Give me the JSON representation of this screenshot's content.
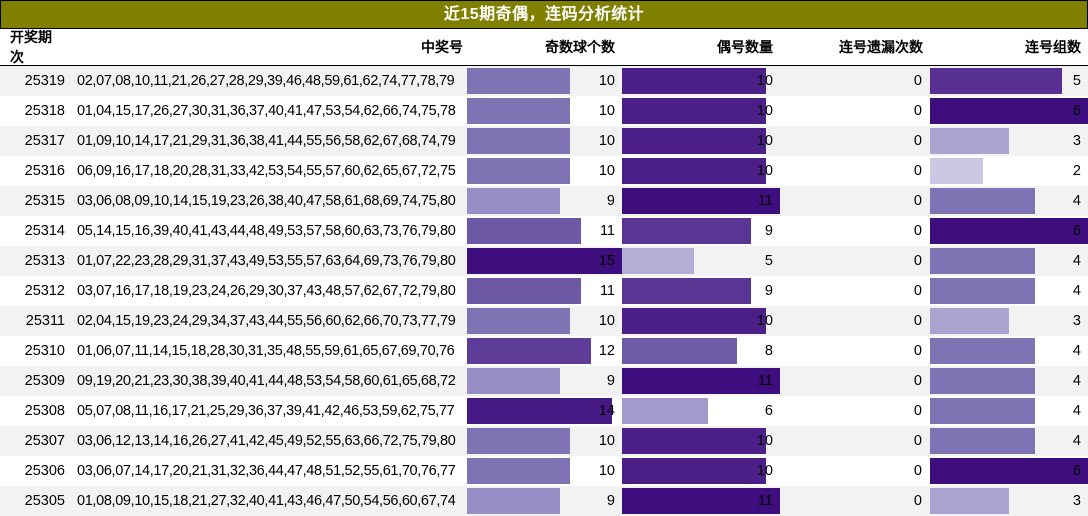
{
  "title": "近15期奇偶，连码分析统计",
  "colors": {
    "title_bg": "#7F7F00",
    "title_text": "#FFFFFF",
    "row_stripe_bg": "#F2F2F2",
    "row_bg": "#FFFFFF",
    "border": "#000000",
    "bar_ramp": [
      {
        "t": 0.3,
        "color": "#D2CFE8"
      },
      {
        "t": 0.6,
        "color": "#988DC4"
      },
      {
        "t": 0.7,
        "color": "#7466AB"
      },
      {
        "t": 0.85,
        "color": "#53298E"
      },
      {
        "t": 1.0,
        "color": "#3E0D7E"
      }
    ]
  },
  "chart_data": {
    "type": "table",
    "title": "近15期奇偶，连码分析统计",
    "columns": [
      "开奖期次",
      "中奖号",
      "奇数球个数",
      "偶号数量",
      "连号遗漏次数",
      "连号组数"
    ],
    "bar_scales": {
      "odd_max": 15,
      "even_max": 11,
      "groups_max": 6
    },
    "rows": [
      [
        "25319",
        "02,07,08,10,11,21,26,27,28,29,39,46,48,59,61,62,74,77,78,79",
        10,
        10,
        0,
        5
      ],
      [
        "25318",
        "01,04,15,17,26,27,30,31,36,37,40,41,47,53,54,62,66,74,75,78",
        10,
        10,
        0,
        6
      ],
      [
        "25317",
        "01,09,10,14,17,21,29,31,36,38,41,44,55,56,58,62,67,68,74,79",
        10,
        10,
        0,
        3
      ],
      [
        "25316",
        "06,09,16,17,18,20,28,31,33,42,53,54,55,57,60,62,65,67,72,75",
        10,
        10,
        0,
        2
      ],
      [
        "25315",
        "03,06,08,09,10,14,15,19,23,26,38,40,47,58,61,68,69,74,75,80",
        9,
        11,
        0,
        4
      ],
      [
        "25314",
        "05,14,15,16,39,40,41,43,44,48,49,53,57,58,60,63,73,76,79,80",
        11,
        9,
        0,
        6
      ],
      [
        "25313",
        "01,07,22,23,28,29,31,37,43,49,53,55,57,63,64,69,73,76,79,80",
        15,
        5,
        0,
        4
      ],
      [
        "25312",
        "03,07,16,17,18,19,23,24,26,29,30,37,43,48,57,62,67,72,79,80",
        11,
        9,
        0,
        4
      ],
      [
        "25311",
        "02,04,15,19,23,24,29,34,37,43,44,55,56,60,62,66,70,73,77,79",
        10,
        10,
        0,
        3
      ],
      [
        "25310",
        "01,06,07,11,14,15,18,28,30,31,35,48,55,59,61,65,67,69,70,76",
        12,
        8,
        0,
        4
      ],
      [
        "25309",
        "09,19,20,21,23,30,38,39,40,41,44,48,53,54,58,60,61,65,68,72",
        9,
        11,
        0,
        4
      ],
      [
        "25308",
        "05,07,08,11,16,17,21,25,29,36,37,39,41,42,46,53,59,62,75,77",
        14,
        6,
        0,
        4
      ],
      [
        "25307",
        "03,06,12,13,14,16,26,27,41,42,45,49,52,55,63,66,72,75,79,80",
        10,
        10,
        0,
        4
      ],
      [
        "25306",
        "03,06,07,14,17,20,21,31,32,36,44,47,48,51,52,55,61,70,76,77",
        10,
        10,
        0,
        6
      ],
      [
        "25305",
        "01,08,09,10,15,18,21,27,32,40,41,43,46,47,50,54,56,60,67,74",
        9,
        11,
        0,
        3
      ]
    ]
  }
}
